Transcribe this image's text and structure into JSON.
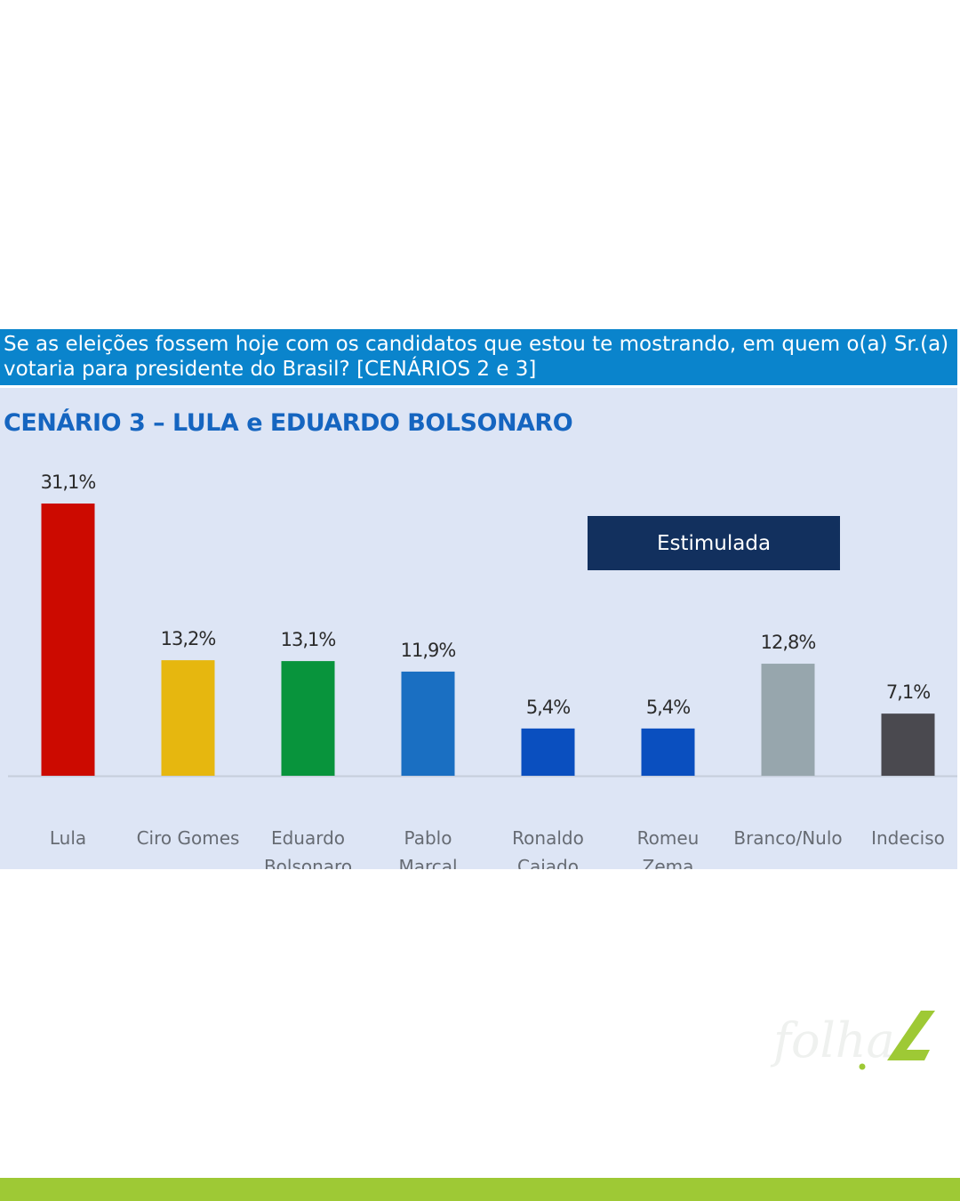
{
  "question": {
    "line1": "Se as eleições fossem hoje com os candidatos que estou te mostrando, em quem o(a) Sr.(a)",
    "line2": "votaria para presidente do Brasil? [CENÁRIOS 2 e 3]"
  },
  "scenario_title": "CENÁRIO 3 – LULA e EDUARDO BOLSONARO",
  "legend_label": "Estimulada",
  "logo_text": "folha",
  "colors": {
    "header_bg": "#0a84cc",
    "panel_bg": "#dde5f5",
    "title": "#1565c0",
    "legend_bg": "#12305e",
    "brand_green": "#9ec935"
  },
  "chart_data": {
    "type": "bar",
    "title": "CENÁRIO 3 – LULA e EDUARDO BOLSONARO",
    "categories": [
      [
        "Lula"
      ],
      [
        "Ciro Gomes"
      ],
      [
        "Eduardo",
        "Bolsonaro"
      ],
      [
        "Pablo",
        "Marçal"
      ],
      [
        "Ronaldo",
        "Caiado"
      ],
      [
        "Romeu",
        "Zema"
      ],
      [
        "Branco/Nulo"
      ],
      [
        "Indeciso"
      ]
    ],
    "values": [
      31.1,
      13.2,
      13.1,
      11.9,
      5.4,
      5.4,
      12.8,
      7.1
    ],
    "value_labels": [
      "31,1%",
      "13,2%",
      "13,1%",
      "11,9%",
      "5,4%",
      "5,4%",
      "12,8%",
      "7,1%"
    ],
    "colors": [
      "#cc0a00",
      "#e6b70f",
      "#08943c",
      "#1a6fc2",
      "#0a4fbf",
      "#0a4fbf",
      "#97a6ad",
      "#4a494f"
    ],
    "ylim": [
      0,
      31.1
    ],
    "grid": false,
    "legend": "top-right"
  }
}
